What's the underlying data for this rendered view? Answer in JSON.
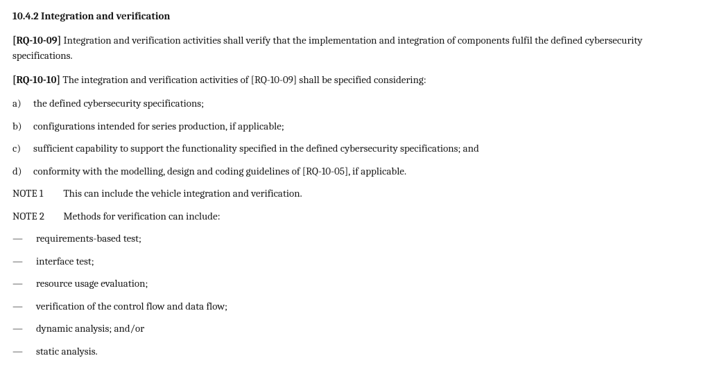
{
  "section": {
    "number_title": "10.4.2   Integration and verification"
  },
  "req09": {
    "id": "[RQ-10-09]",
    "text": " Integration and verification activities shall verify that the implementation and integration of components fulfil the defined cybersecurity specifications."
  },
  "req10": {
    "id": "[RQ-10-10]",
    "text": "  The integration and verification activities of [RQ-10-09] shall be specified considering:"
  },
  "list": {
    "a_marker": "a)",
    "a": "the defined cybersecurity specifications;",
    "b_marker": "b)",
    "b": "configurations intended for series production, if applicable;",
    "c_marker": "c)",
    "c": "sufficient capability to support the functionality specified in the defined cybersecurity specifications; and",
    "d_marker": "d)",
    "d": "conformity with the modelling, design and coding guidelines of [RQ-10-05], if applicable."
  },
  "note1": {
    "label": "NOTE 1",
    "text": "This can include the vehicle integration and verification."
  },
  "note2": {
    "label": "NOTE 2",
    "text": "Methods for verification can include:"
  },
  "methods": {
    "m1": "requirements-based test;",
    "m2": "interface test;",
    "m3": "resource usage evaluation;",
    "m4": "verification of the control flow and data flow;",
    "m5": "dynamic analysis; and/or",
    "m6": "static analysis."
  },
  "glyphs": {
    "dash": "—"
  }
}
